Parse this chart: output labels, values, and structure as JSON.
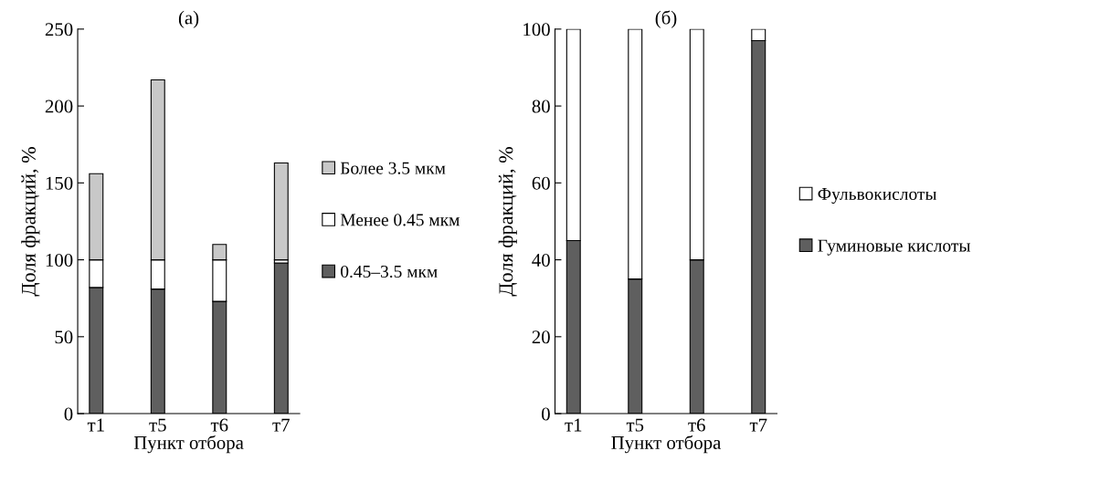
{
  "chart_data": [
    {
      "type": "bar",
      "title": "(a)",
      "xlabel": "Пункт отбора",
      "ylabel": "Доля фракций, %",
      "categories": [
        "т1",
        "т5",
        "т6",
        "т7"
      ],
      "stacked": true,
      "ylim": [
        0,
        250
      ],
      "yticks": [
        0,
        50,
        100,
        150,
        200,
        250
      ],
      "grid": false,
      "legend": "right",
      "series": [
        {
          "name": "0.45–3.5 мкм",
          "color": "#5f5f5f",
          "values": [
            82,
            81,
            73,
            98
          ]
        },
        {
          "name": "Менее 0.45 мкм",
          "color": "#ffffff",
          "values": [
            18,
            19,
            27,
            2
          ]
        },
        {
          "name": "Более 3.5 мкм",
          "color": "#c8c8c8",
          "values": [
            56,
            117,
            10,
            63
          ]
        }
      ]
    },
    {
      "type": "bar",
      "title": "(б)",
      "xlabel": "Пункт отбора",
      "ylabel": "Доля фракций, %",
      "categories": [
        "т1",
        "т5",
        "т6",
        "т7"
      ],
      "stacked": true,
      "ylim": [
        0,
        100
      ],
      "yticks": [
        0,
        20,
        40,
        60,
        80,
        100
      ],
      "grid": false,
      "legend": "right",
      "series": [
        {
          "name": "Гуминовые кислоты",
          "color": "#5f5f5f",
          "values": [
            45,
            35,
            40,
            97
          ]
        },
        {
          "name": "Фульвокислоты",
          "color": "#ffffff",
          "values": [
            55,
            65,
            60,
            3
          ]
        }
      ]
    }
  ]
}
